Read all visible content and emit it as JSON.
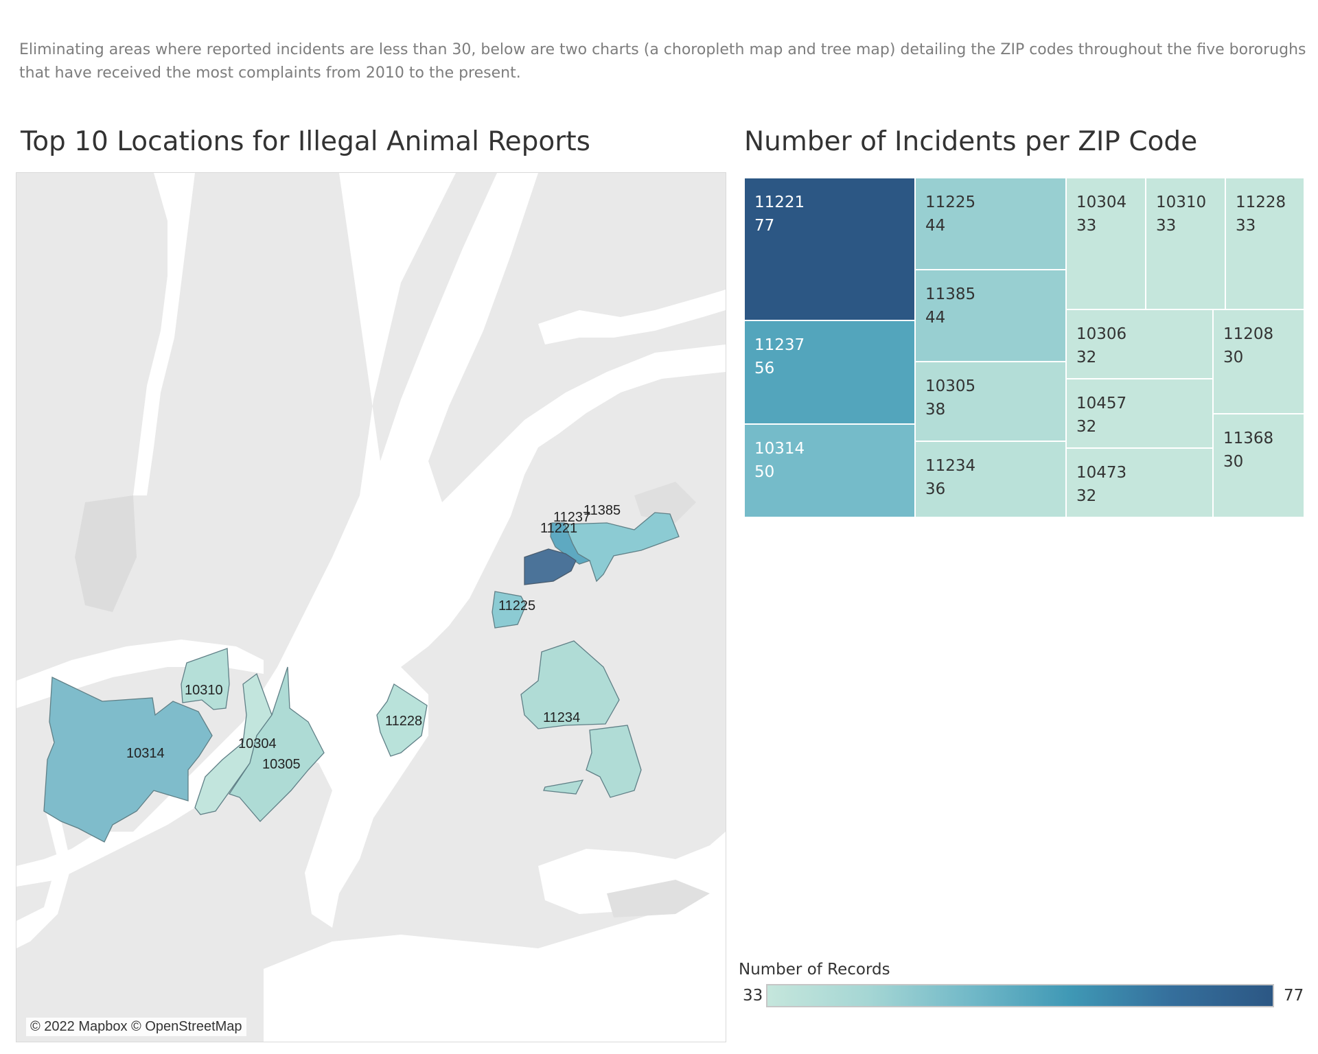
{
  "intro_text": "Eliminating areas where reported incidents are less than 30, below are two charts (a choropleth map and tree map) detailing the ZIP codes throughout the five bororughs that have received the most complaints from 2010 to the present.",
  "map": {
    "title": "Top 10 Locations for Illegal Animal Reports",
    "attribution": "© 2022 Mapbox © OpenStreetMap",
    "regions": [
      {
        "zip": "11221",
        "count": 77
      },
      {
        "zip": "11237",
        "count": 56
      },
      {
        "zip": "11385",
        "count": 44
      },
      {
        "zip": "11225",
        "count": 44
      },
      {
        "zip": "10314",
        "count": 50
      },
      {
        "zip": "10310",
        "count": 33
      },
      {
        "zip": "10304",
        "count": 33
      },
      {
        "zip": "10305",
        "count": 38
      },
      {
        "zip": "11228",
        "count": 33
      },
      {
        "zip": "11234",
        "count": 36
      }
    ]
  },
  "treemap": {
    "title": "Number of Incidents per ZIP Code"
  },
  "legend": {
    "title": "Number of Records",
    "min_label": "33",
    "max_label": "77",
    "colors": [
      "#c5e6dc",
      "#a5d6d4",
      "#72b9c8",
      "#3f98b5",
      "#356f9c",
      "#2c5784"
    ]
  },
  "chart_data": [
    {
      "type": "treemap",
      "title": "Number of Incidents per ZIP Code",
      "categories": [
        "11221",
        "11237",
        "10314",
        "11225",
        "11385",
        "10305",
        "11234",
        "10304",
        "10310",
        "11228",
        "10306",
        "10457",
        "10473",
        "11208",
        "11368"
      ],
      "values": [
        77,
        56,
        50,
        44,
        44,
        38,
        36,
        33,
        33,
        33,
        32,
        32,
        32,
        30,
        30
      ],
      "color_scale": {
        "label": "Number of Records",
        "min": 33,
        "max": 77
      }
    },
    {
      "type": "choropleth",
      "title": "Top 10 Locations for Illegal Animal Reports",
      "categories": [
        "11221",
        "11237",
        "11385",
        "11225",
        "10314",
        "10310",
        "10304",
        "10305",
        "11228",
        "11234"
      ],
      "values": [
        77,
        56,
        44,
        44,
        50,
        33,
        33,
        38,
        33,
        36
      ]
    }
  ]
}
